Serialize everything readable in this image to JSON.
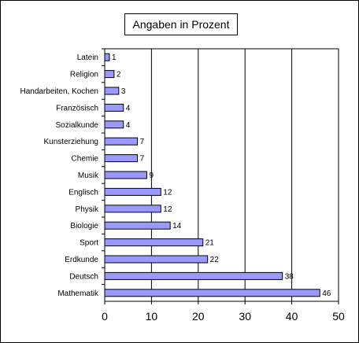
{
  "chart_data": {
    "type": "bar",
    "orientation": "horizontal",
    "title": "Angaben in Prozent",
    "categories": [
      "Latein",
      "Religion",
      "Handarbeiten, Kochen",
      "Französisch",
      "Sozialkunde",
      "Kunsterziehung",
      "Chemie",
      "Musik",
      "Englisch",
      "Physik",
      "Biologie",
      "Sport",
      "Erdkunde",
      "Deutsch",
      "Mathematik"
    ],
    "values": [
      1,
      2,
      3,
      4,
      4,
      7,
      7,
      9,
      12,
      12,
      14,
      21,
      22,
      38,
      46
    ],
    "xlabel": "",
    "ylabel": "",
    "xlim": [
      0,
      50
    ],
    "xticks": [
      0,
      10,
      20,
      30,
      40,
      50
    ],
    "grid": "vertical",
    "legend": "none",
    "bar_color": "#9999ff"
  }
}
